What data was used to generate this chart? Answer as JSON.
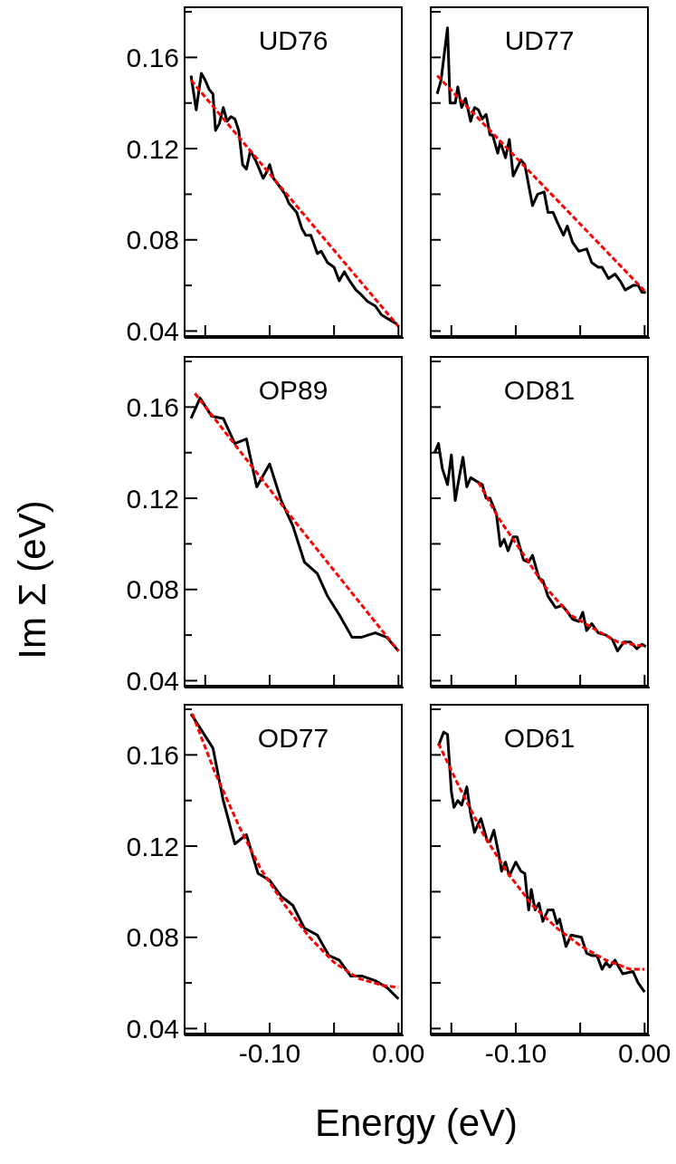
{
  "chart_data": [
    {
      "type": "line",
      "title": "UD76",
      "xlim": [
        -0.166,
        0.004
      ],
      "ylim": [
        0.037,
        0.182
      ],
      "tick_labels": "y",
      "xticks": [
        {
          "value": -0.15,
          "label": null
        },
        {
          "value": -0.1,
          "label": null
        },
        {
          "value": -0.05,
          "label": null
        },
        {
          "value": 0,
          "label": null
        }
      ],
      "yticks": [
        {
          "value": 0.04,
          "label": "0.04"
        },
        {
          "value": 0.06,
          "label": null
        },
        {
          "value": 0.08,
          "label": "0.08"
        },
        {
          "value": 0.1,
          "label": null
        },
        {
          "value": 0.12,
          "label": "0.12"
        },
        {
          "value": 0.14,
          "label": null
        },
        {
          "value": 0.16,
          "label": "0.16"
        },
        {
          "value": 0.18,
          "label": null
        }
      ],
      "series": [
        {
          "color": "#000000",
          "line_style": "solid",
          "x": [
            -0.161,
            -0.157,
            -0.153,
            -0.15,
            -0.147,
            -0.144,
            -0.142,
            -0.139,
            -0.136,
            -0.133,
            -0.13,
            -0.127,
            -0.124,
            -0.121,
            -0.118,
            -0.115,
            -0.111,
            -0.105,
            -0.102,
            -0.1,
            -0.097,
            -0.093,
            -0.088,
            -0.085,
            -0.079,
            -0.075,
            -0.072,
            -0.068,
            -0.063,
            -0.06,
            -0.055,
            -0.05,
            -0.046,
            -0.042,
            -0.039,
            -0.033,
            -0.029,
            -0.024,
            -0.018,
            -0.013,
            -0.007,
            -0.001
          ],
          "values": [
            0.152,
            0.137,
            0.153,
            0.15,
            0.146,
            0.144,
            0.128,
            0.131,
            0.138,
            0.132,
            0.134,
            0.133,
            0.128,
            0.113,
            0.111,
            0.119,
            0.115,
            0.107,
            0.11,
            0.113,
            0.107,
            0.104,
            0.1,
            0.096,
            0.092,
            0.085,
            0.082,
            0.082,
            0.074,
            0.075,
            0.07,
            0.068,
            0.062,
            0.066,
            0.063,
            0.058,
            0.056,
            0.053,
            0.051,
            0.047,
            0.045,
            0.043
          ]
        },
        {
          "type": "line",
          "color": "#ff0000",
          "line_style": "dashed",
          "x": [
            -0.161,
            -0.08,
            0
          ],
          "values": [
            0.15,
            0.0955,
            0.042
          ]
        }
      ]
    },
    {
      "type": "line",
      "title": "UD77",
      "xlim": [
        -0.166,
        0.004
      ],
      "ylim": [
        0.037,
        0.182
      ],
      "tick_labels": false,
      "xticks": [
        {
          "value": -0.15,
          "label": null
        },
        {
          "value": -0.1,
          "label": null
        },
        {
          "value": -0.05,
          "label": null
        },
        {
          "value": 0,
          "label": null
        }
      ],
      "yticks": [
        {
          "value": 0.04,
          "label": null
        },
        {
          "value": 0.06,
          "label": null
        },
        {
          "value": 0.08,
          "label": null
        },
        {
          "value": 0.1,
          "label": null
        },
        {
          "value": 0.12,
          "label": null
        },
        {
          "value": 0.14,
          "label": null
        },
        {
          "value": 0.16,
          "label": null
        },
        {
          "value": 0.18,
          "label": null
        }
      ],
      "series": [
        {
          "color": "#000000",
          "line_style": "solid",
          "x": [
            -0.161,
            -0.158,
            -0.153,
            -0.151,
            -0.147,
            -0.145,
            -0.142,
            -0.139,
            -0.135,
            -0.132,
            -0.129,
            -0.126,
            -0.123,
            -0.12,
            -0.118,
            -0.114,
            -0.112,
            -0.108,
            -0.105,
            -0.102,
            -0.096,
            -0.093,
            -0.087,
            -0.083,
            -0.078,
            -0.075,
            -0.071,
            -0.068,
            -0.063,
            -0.06,
            -0.056,
            -0.051,
            -0.045,
            -0.041,
            -0.036,
            -0.033,
            -0.028,
            -0.023,
            -0.019,
            -0.015,
            -0.009,
            -0.005,
            -0.002,
            0.001
          ],
          "values": [
            0.144,
            0.15,
            0.173,
            0.14,
            0.14,
            0.147,
            0.138,
            0.142,
            0.132,
            0.138,
            0.137,
            0.133,
            0.135,
            0.126,
            0.126,
            0.118,
            0.123,
            0.116,
            0.124,
            0.108,
            0.115,
            0.113,
            0.095,
            0.1,
            0.101,
            0.092,
            0.092,
            0.088,
            0.082,
            0.086,
            0.079,
            0.075,
            0.076,
            0.07,
            0.068,
            0.068,
            0.063,
            0.065,
            0.062,
            0.058,
            0.06,
            0.06,
            0.057,
            0.057
          ]
        },
        {
          "color": "#ff0000",
          "line_style": "dashed",
          "x": [
            -0.161,
            -0.08,
            0.001
          ],
          "values": [
            0.152,
            0.1045,
            0.057
          ]
        }
      ]
    },
    {
      "type": "line",
      "title": "OP89",
      "ylabel": "Im Σ (eV)",
      "xlim": [
        -0.166,
        0.004
      ],
      "ylim": [
        0.037,
        0.182
      ],
      "tick_labels": "y",
      "xticks": [
        {
          "value": -0.15,
          "label": null
        },
        {
          "value": -0.1,
          "label": null
        },
        {
          "value": -0.05,
          "label": null
        },
        {
          "value": 0,
          "label": null
        }
      ],
      "yticks": [
        {
          "value": 0.04,
          "label": "0.04"
        },
        {
          "value": 0.06,
          "label": null
        },
        {
          "value": 0.08,
          "label": "0.08"
        },
        {
          "value": 0.1,
          "label": null
        },
        {
          "value": 0.12,
          "label": "0.12"
        },
        {
          "value": 0.14,
          "label": null
        },
        {
          "value": 0.16,
          "label": "0.16"
        },
        {
          "value": 0.18,
          "label": null
        }
      ],
      "series": [
        {
          "color": "#000000",
          "line_style": "solid",
          "x": [
            -0.161,
            -0.154,
            -0.145,
            -0.136,
            -0.127,
            -0.118,
            -0.11,
            -0.1,
            -0.091,
            -0.082,
            -0.073,
            -0.063,
            -0.055,
            -0.046,
            -0.036,
            -0.029,
            -0.018,
            -0.009,
            0
          ],
          "values": [
            0.155,
            0.164,
            0.156,
            0.155,
            0.144,
            0.146,
            0.125,
            0.135,
            0.119,
            0.108,
            0.092,
            0.087,
            0.077,
            0.069,
            0.059,
            0.059,
            0.061,
            0.059,
            0.053
          ]
        },
        {
          "color": "#ff0000",
          "line_style": "dashed",
          "x": [
            -0.158,
            -0.08,
            0
          ],
          "values": [
            0.166,
            0.1095,
            0.053
          ]
        }
      ]
    },
    {
      "type": "line",
      "title": "OD81",
      "xlim": [
        -0.166,
        0.004
      ],
      "ylim": [
        0.037,
        0.182
      ],
      "tick_labels": false,
      "xticks": [
        {
          "value": -0.15,
          "label": null
        },
        {
          "value": -0.1,
          "label": null
        },
        {
          "value": -0.05,
          "label": null
        },
        {
          "value": 0,
          "label": null
        }
      ],
      "yticks": [
        {
          "value": 0.04,
          "label": null
        },
        {
          "value": 0.06,
          "label": null
        },
        {
          "value": 0.08,
          "label": null
        },
        {
          "value": 0.1,
          "label": null
        },
        {
          "value": 0.12,
          "label": null
        },
        {
          "value": 0.14,
          "label": null
        },
        {
          "value": 0.16,
          "label": null
        },
        {
          "value": 0.18,
          "label": null
        }
      ],
      "series": [
        {
          "color": "#000000",
          "line_style": "solid",
          "x": [
            -0.163,
            -0.16,
            -0.157,
            -0.153,
            -0.15,
            -0.147,
            -0.144,
            -0.141,
            -0.138,
            -0.135,
            -0.129,
            -0.126,
            -0.123,
            -0.12,
            -0.115,
            -0.112,
            -0.109,
            -0.106,
            -0.102,
            -0.099,
            -0.094,
            -0.09,
            -0.087,
            -0.082,
            -0.079,
            -0.075,
            -0.069,
            -0.064,
            -0.061,
            -0.056,
            -0.051,
            -0.048,
            -0.045,
            -0.041,
            -0.036,
            -0.03,
            -0.025,
            -0.021,
            -0.016,
            -0.011,
            -0.006,
            -0.002,
            0.001
          ],
          "values": [
            0.14,
            0.144,
            0.133,
            0.126,
            0.139,
            0.119,
            0.129,
            0.138,
            0.125,
            0.129,
            0.127,
            0.126,
            0.12,
            0.12,
            0.113,
            0.099,
            0.102,
            0.097,
            0.103,
            0.103,
            0.093,
            0.092,
            0.095,
            0.085,
            0.084,
            0.077,
            0.072,
            0.073,
            0.071,
            0.067,
            0.066,
            0.07,
            0.062,
            0.065,
            0.061,
            0.06,
            0.058,
            0.053,
            0.057,
            0.057,
            0.054,
            0.056,
            0.055
          ]
        },
        {
          "color": "#ff0000",
          "line_style": "dashed",
          "x": [
            -0.129,
            -0.113,
            -0.096,
            -0.077,
            -0.058,
            -0.04,
            -0.021,
            0.001
          ],
          "values": [
            0.127,
            0.111,
            0.097,
            0.081,
            0.069,
            0.063,
            0.057,
            0.055
          ]
        }
      ]
    },
    {
      "type": "line",
      "title": "OD77",
      "xlabel": "Energy (eV)",
      "xlim": [
        -0.166,
        0.004
      ],
      "ylim": [
        0.037,
        0.182
      ],
      "xticks": [
        {
          "value": -0.15,
          "label": null
        },
        {
          "value": -0.1,
          "label": "-0.10"
        },
        {
          "value": -0.05,
          "label": null
        },
        {
          "value": 0,
          "label": "0.00"
        }
      ],
      "yticks": [
        {
          "value": 0.04,
          "label": "0.04"
        },
        {
          "value": 0.06,
          "label": null
        },
        {
          "value": 0.08,
          "label": "0.08"
        },
        {
          "value": 0.1,
          "label": null
        },
        {
          "value": 0.12,
          "label": "0.12"
        },
        {
          "value": 0.14,
          "label": null
        },
        {
          "value": 0.16,
          "label": "0.16"
        },
        {
          "value": 0.18,
          "label": null
        }
      ],
      "series": [
        {
          "color": "#000000",
          "line_style": "solid",
          "x": [
            -0.161,
            -0.144,
            -0.136,
            -0.127,
            -0.118,
            -0.109,
            -0.1,
            -0.091,
            -0.082,
            -0.073,
            -0.063,
            -0.054,
            -0.046,
            -0.037,
            -0.028,
            -0.018,
            -0.009,
            0
          ],
          "values": [
            0.178,
            0.163,
            0.14,
            0.121,
            0.125,
            0.108,
            0.105,
            0.098,
            0.094,
            0.084,
            0.081,
            0.072,
            0.07,
            0.063,
            0.063,
            0.061,
            0.058,
            0.053
          ]
        },
        {
          "color": "#ff0000",
          "line_style": "dashed",
          "x": [
            -0.16,
            -0.143,
            -0.124,
            -0.107,
            -0.088,
            -0.069,
            -0.05,
            -0.031,
            -0.013,
            0
          ],
          "values": [
            0.178,
            0.153,
            0.129,
            0.11,
            0.094,
            0.08,
            0.069,
            0.062,
            0.059,
            0.058
          ]
        }
      ]
    },
    {
      "type": "line",
      "title": "OD61",
      "xlim": [
        -0.166,
        0.004
      ],
      "ylim": [
        0.037,
        0.182
      ],
      "tick_labels": "x",
      "xticks": [
        {
          "value": -0.15,
          "label": null
        },
        {
          "value": -0.1,
          "label": "-0.10"
        },
        {
          "value": -0.05,
          "label": null
        },
        {
          "value": 0,
          "label": "0.00"
        }
      ],
      "yticks": [
        {
          "value": 0.04,
          "label": null
        },
        {
          "value": 0.06,
          "label": null
        },
        {
          "value": 0.08,
          "label": null
        },
        {
          "value": 0.1,
          "label": null
        },
        {
          "value": 0.12,
          "label": null
        },
        {
          "value": 0.14,
          "label": null
        },
        {
          "value": 0.16,
          "label": null
        },
        {
          "value": 0.18,
          "label": null
        }
      ],
      "series": [
        {
          "color": "#000000",
          "line_style": "solid",
          "x": [
            -0.16,
            -0.156,
            -0.153,
            -0.15,
            -0.148,
            -0.145,
            -0.142,
            -0.138,
            -0.135,
            -0.132,
            -0.129,
            -0.127,
            -0.122,
            -0.12,
            -0.117,
            -0.113,
            -0.111,
            -0.108,
            -0.105,
            -0.1,
            -0.096,
            -0.093,
            -0.09,
            -0.088,
            -0.085,
            -0.082,
            -0.079,
            -0.075,
            -0.071,
            -0.068,
            -0.066,
            -0.061,
            -0.057,
            -0.049,
            -0.045,
            -0.041,
            -0.037,
            -0.033,
            -0.03,
            -0.027,
            -0.023,
            -0.017,
            -0.009,
            -0.005,
            0
          ],
          "values": [
            0.164,
            0.17,
            0.169,
            0.144,
            0.137,
            0.14,
            0.138,
            0.146,
            0.134,
            0.126,
            0.13,
            0.132,
            0.122,
            0.122,
            0.127,
            0.116,
            0.109,
            0.113,
            0.107,
            0.113,
            0.109,
            0.108,
            0.092,
            0.101,
            0.092,
            0.095,
            0.087,
            0.092,
            0.092,
            0.086,
            0.088,
            0.076,
            0.081,
            0.08,
            0.073,
            0.072,
            0.072,
            0.066,
            0.069,
            0.067,
            0.07,
            0.064,
            0.065,
            0.06,
            0.056
          ]
        },
        {
          "color": "#ff0000",
          "line_style": "dashed",
          "x": [
            -0.16,
            -0.144,
            -0.125,
            -0.106,
            -0.087,
            -0.068,
            -0.049,
            -0.03,
            -0.011,
            0
          ],
          "values": [
            0.165,
            0.146,
            0.125,
            0.108,
            0.094,
            0.084,
            0.076,
            0.07,
            0.066,
            0.066
          ]
        }
      ]
    }
  ]
}
